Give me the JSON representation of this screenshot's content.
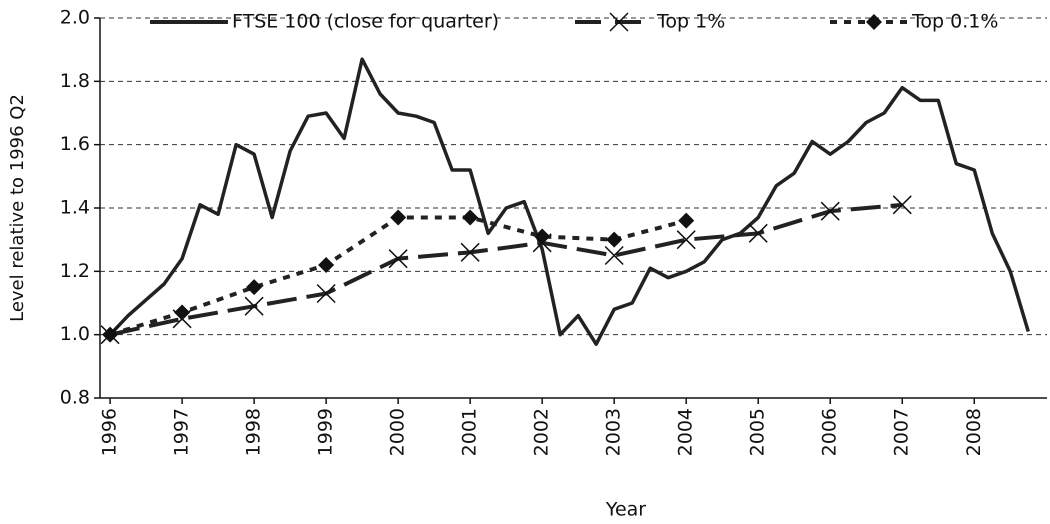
{
  "chart_data": {
    "type": "line",
    "x_label": "Year",
    "y_label": "Level relative to 1996 Q2",
    "xlim": [
      1995.86,
      2009.01
    ],
    "xticks": [
      1996,
      1997,
      1998,
      1999,
      2000,
      2001,
      2002,
      2003,
      2004,
      2005,
      2006,
      2007,
      2008
    ],
    "ylim": [
      0.8,
      2.0
    ],
    "yticks": [
      0.8,
      {
        "value": 1.0,
        "label": "1.0"
      },
      1.2,
      1.4,
      1.6,
      1.8,
      {
        "value": 2.0,
        "label": "2.0"
      }
    ],
    "grid": true,
    "legend": "top",
    "series": [
      {
        "name": "FTSE 100 (close for quarter)",
        "color": "#222222",
        "style": "solid",
        "marker": "none",
        "x": [
          1996,
          1996.25,
          1996.5,
          1996.75,
          1997,
          1997.25,
          1997.5,
          1997.75,
          1998,
          1998.25,
          1998.5,
          1998.75,
          1999,
          1999.25,
          1999.5,
          1999.75,
          2000,
          2000.25,
          2000.5,
          2000.75,
          2001,
          2001.25,
          2001.5,
          2001.75,
          2002,
          2002.25,
          2002.5,
          2002.75,
          2003,
          2003.25,
          2003.5,
          2003.75,
          2004,
          2004.25,
          2004.5,
          2004.75,
          2005,
          2005.25,
          2005.5,
          2005.75,
          2006,
          2006.25,
          2006.5,
          2006.75,
          2007,
          2007.25,
          2007.5,
          2007.75,
          2008,
          2008.25,
          2008.5,
          2008.75
        ],
        "values": [
          1.0,
          1.06,
          1.11,
          1.16,
          1.24,
          1.41,
          1.38,
          1.6,
          1.57,
          1.37,
          1.58,
          1.69,
          1.7,
          1.62,
          1.87,
          1.76,
          1.7,
          1.69,
          1.67,
          1.52,
          1.52,
          1.32,
          1.4,
          1.42,
          1.27,
          1.0,
          1.06,
          0.97,
          1.08,
          1.1,
          1.21,
          1.18,
          1.2,
          1.23,
          1.3,
          1.32,
          1.37,
          1.47,
          1.51,
          1.61,
          1.57,
          1.61,
          1.67,
          1.7,
          1.78,
          1.74,
          1.74,
          1.54,
          1.52,
          1.32,
          1.2,
          1.01
        ]
      },
      {
        "name": "Top 1%",
        "color": "#222222",
        "style": "dashed",
        "marker": "x",
        "x": [
          1996,
          1997,
          1998,
          1999,
          2000,
          2001,
          2002,
          2003,
          2004,
          2005,
          2006,
          2007
        ],
        "values": [
          1.0,
          1.05,
          1.09,
          1.13,
          1.24,
          1.26,
          1.29,
          1.25,
          1.3,
          1.32,
          1.39,
          1.41
        ]
      },
      {
        "name": "Top 0.1%",
        "color": "#222222",
        "style": "dotted",
        "marker": "diamond",
        "x": [
          1996,
          1997,
          1998,
          1999,
          2000,
          2001,
          2002,
          2003,
          2004
        ],
        "values": [
          1.0,
          1.07,
          1.15,
          1.22,
          1.37,
          1.37,
          1.31,
          1.3,
          1.36
        ]
      }
    ]
  }
}
